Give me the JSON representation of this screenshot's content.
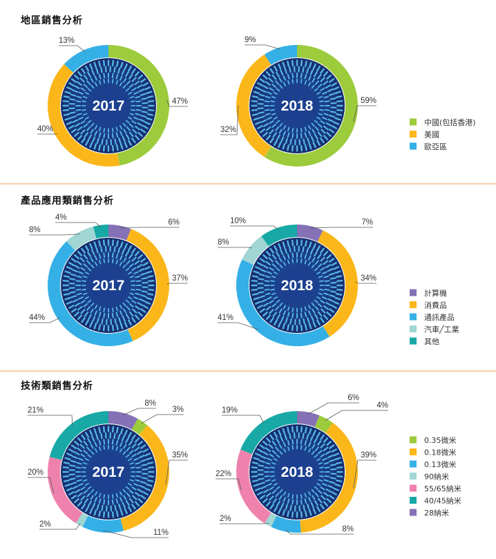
{
  "sections": [
    {
      "title": "地區銷售分析",
      "legend": [
        {
          "label": "中國(包括香港)",
          "color": "#9ccb3b"
        },
        {
          "label": "美國",
          "color": "#fbb71a"
        },
        {
          "label": "歐亞區",
          "color": "#34b0e6"
        }
      ]
    },
    {
      "title": "產品應用類銷售分析",
      "legend": [
        {
          "label": "計算機",
          "color": "#8471b6"
        },
        {
          "label": "消費品",
          "color": "#fbb71a"
        },
        {
          "label": "通訊產品",
          "color": "#34b0e6"
        },
        {
          "label": "汽車╱工業",
          "color": "#a0d6d4"
        },
        {
          "label": "其他",
          "color": "#18a9a6"
        }
      ]
    },
    {
      "title": "技術類銷售分析",
      "legend": [
        {
          "label": "0.35微米",
          "color": "#9ccb3b"
        },
        {
          "label": "0.18微米",
          "color": "#fbb71a"
        },
        {
          "label": "0.13微米",
          "color": "#34b0e6"
        },
        {
          "label": "90納米",
          "color": "#a0d6d4"
        },
        {
          "label": "55/65納米",
          "color": "#ee82ad"
        },
        {
          "label": "40/45納米",
          "color": "#18a9a6"
        },
        {
          "label": "28納米",
          "color": "#8471b6"
        }
      ]
    }
  ],
  "chart_data": [
    {
      "type": "pie",
      "section": 0,
      "center_label": "2017",
      "categories": [
        "中國(包括香港)",
        "美國",
        "歐亞區"
      ],
      "values": [
        47,
        40,
        13
      ],
      "labels": [
        "47%",
        "40%",
        "13%"
      ]
    },
    {
      "type": "pie",
      "section": 0,
      "center_label": "2018",
      "categories": [
        "中國(包括香港)",
        "美國",
        "歐亞區"
      ],
      "values": [
        59,
        32,
        9
      ],
      "labels": [
        "59%",
        "32%",
        "9%"
      ]
    },
    {
      "type": "pie",
      "section": 1,
      "center_label": "2017",
      "categories": [
        "計算機",
        "消費品",
        "通訊產品",
        "汽車╱工業",
        "其他"
      ],
      "values": [
        6,
        37,
        44,
        8,
        4
      ],
      "labels": [
        "6%",
        "37%",
        "44%",
        "8%",
        "4%"
      ]
    },
    {
      "type": "pie",
      "section": 1,
      "center_label": "2018",
      "categories": [
        "計算機",
        "消費品",
        "通訊產品",
        "汽車╱工業",
        "其他"
      ],
      "values": [
        7,
        34,
        41,
        8,
        10
      ],
      "labels": [
        "7%",
        "34%",
        "41%",
        "8%",
        "10%"
      ]
    },
    {
      "type": "pie",
      "section": 2,
      "center_label": "2017",
      "categories": [
        "28納米",
        "0.35微米",
        "0.18微米",
        "0.13微米",
        "90納米",
        "55/65納米",
        "40/45納米"
      ],
      "values": [
        8,
        3,
        35,
        11,
        2,
        20,
        21
      ],
      "labels": [
        "8%",
        "3%",
        "35%",
        "11%",
        "2%",
        "20%",
        "21%"
      ]
    },
    {
      "type": "pie",
      "section": 2,
      "center_label": "2018",
      "categories": [
        "28納米",
        "0.35微米",
        "0.18微米",
        "0.13微米",
        "90納米",
        "55/65納米",
        "40/45納米"
      ],
      "values": [
        6,
        4,
        39,
        8,
        2,
        22,
        19
      ],
      "labels": [
        "6%",
        "4%",
        "39%",
        "8%",
        "2%",
        "22%",
        "19%"
      ]
    }
  ]
}
